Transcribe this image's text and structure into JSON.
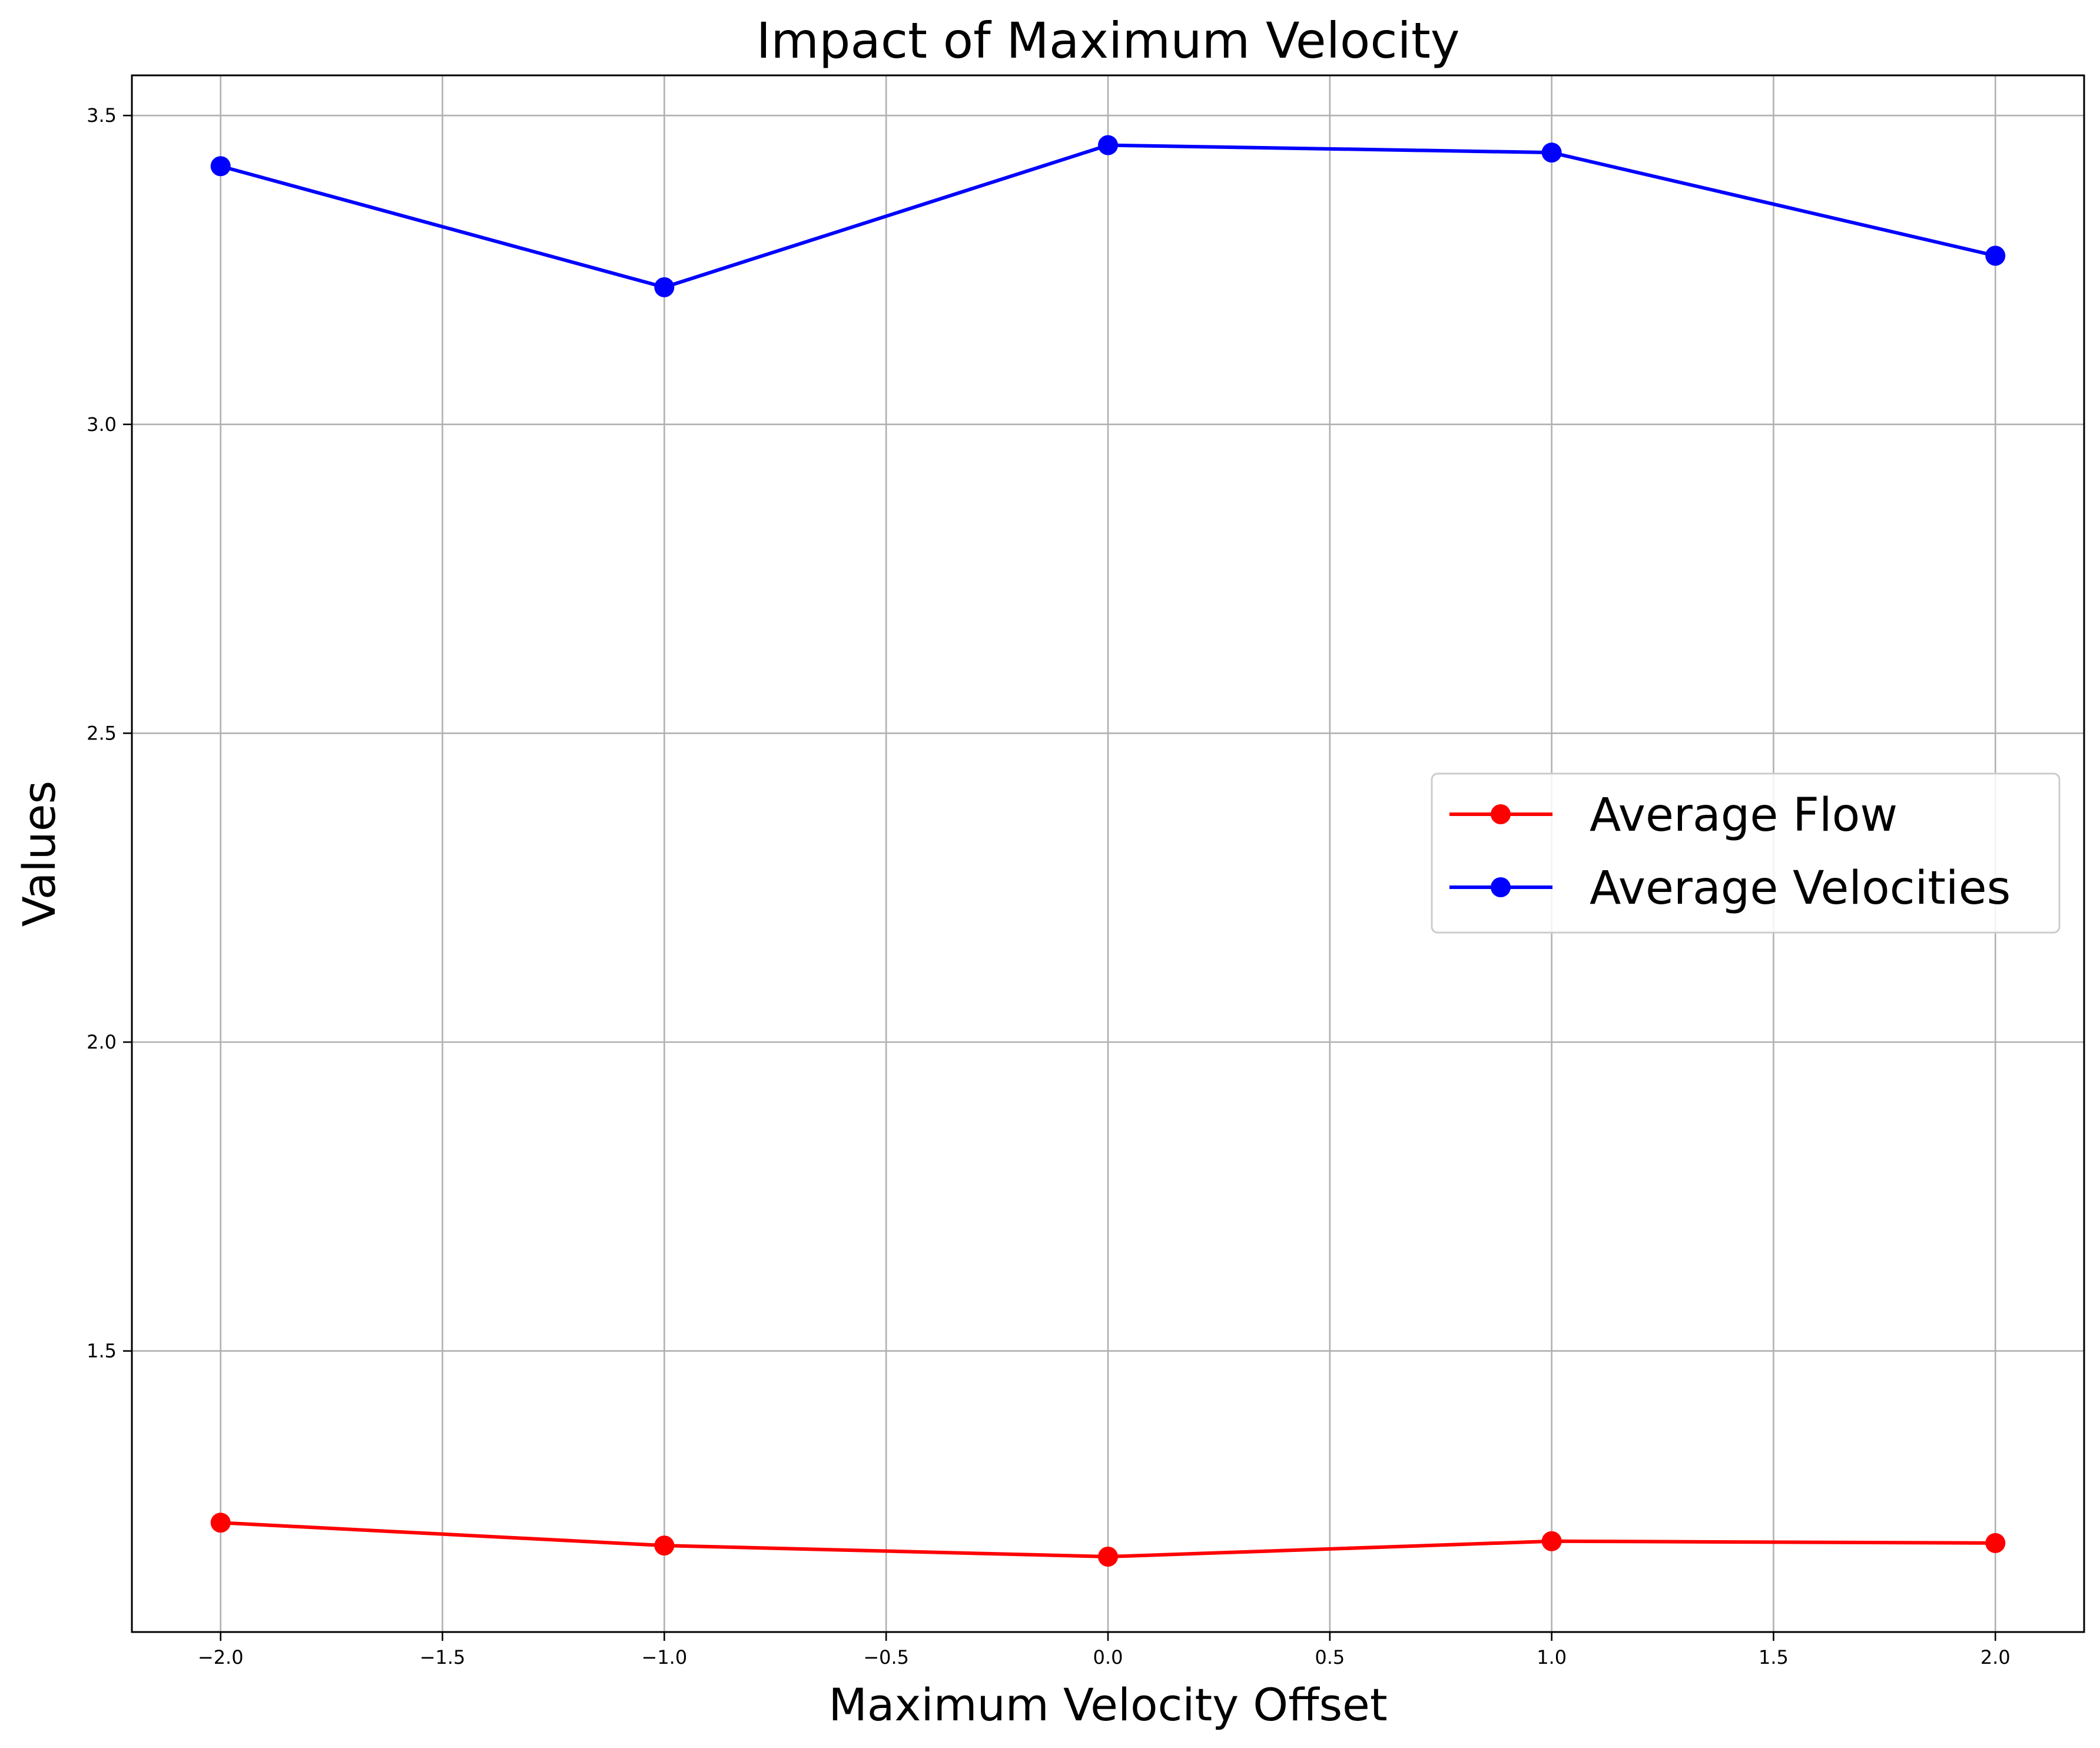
{
  "chart_data": {
    "type": "line",
    "title": "Impact of Maximum Velocity",
    "xlabel": "Maximum Velocity Offset",
    "ylabel": "Values",
    "x": [
      -2.0,
      -1.0,
      0.0,
      1.0,
      2.0
    ],
    "xlim": [
      -2.2,
      2.2
    ],
    "ylim": [
      1.045,
      3.565
    ],
    "xticks": [
      -2.0,
      -1.5,
      -1.0,
      -0.5,
      0.0,
      0.5,
      1.0,
      1.5,
      2.0
    ],
    "xtick_labels": [
      "−2.0",
      "−1.5",
      "−1.0",
      "−0.5",
      "0.0",
      "0.5",
      "1.0",
      "1.5",
      "2.0"
    ],
    "yticks": [
      1.5,
      2.0,
      2.5,
      3.0,
      3.5
    ],
    "ytick_labels": [
      "1.5",
      "2.0",
      "2.5",
      "3.0",
      "3.5"
    ],
    "grid": true,
    "legend_position": "center-right",
    "series": [
      {
        "name": "Average Flow",
        "color": "#ff0000",
        "marker": "circle",
        "values": [
          1.222,
          1.185,
          1.167,
          1.192,
          1.189
        ]
      },
      {
        "name": "Average Velocities",
        "color": "#0000ff",
        "marker": "circle",
        "values": [
          3.418,
          3.222,
          3.452,
          3.44,
          3.273
        ]
      }
    ]
  }
}
